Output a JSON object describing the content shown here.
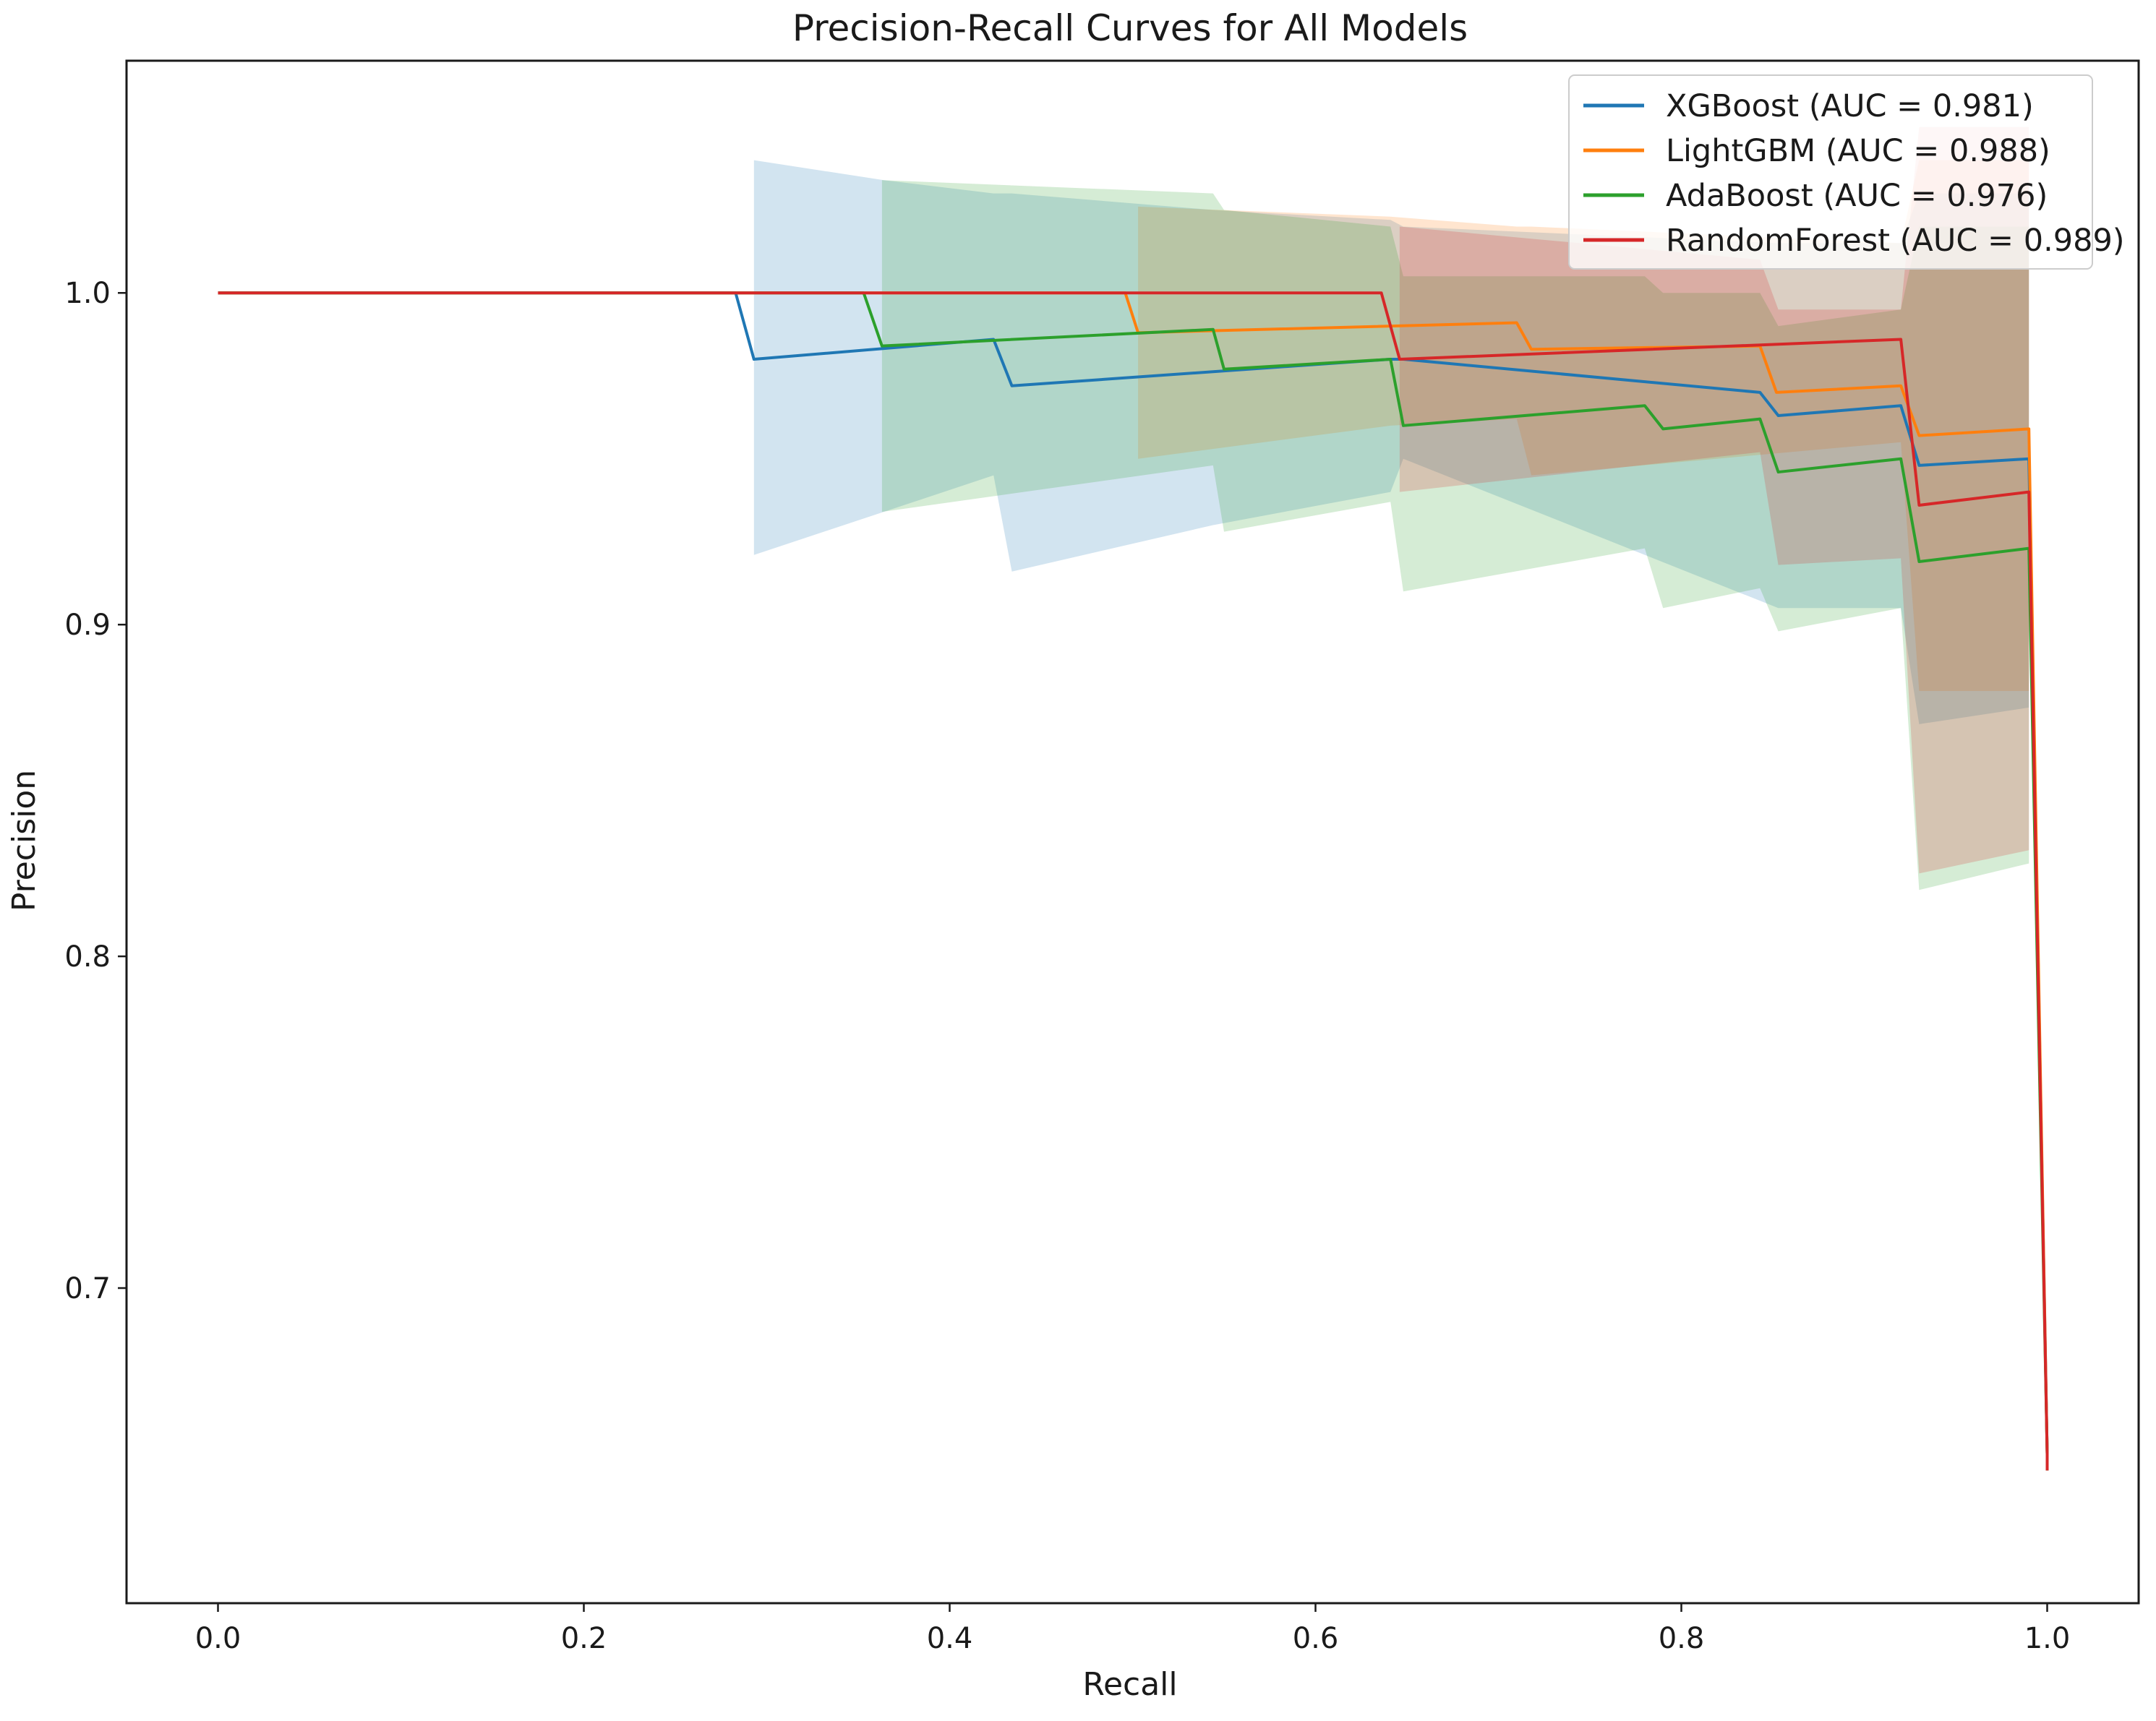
{
  "chart_data": {
    "type": "line",
    "title": "Precision-Recall Curves for All Models",
    "xlabel": "Recall",
    "ylabel": "Precision",
    "xlim": [
      -0.05,
      1.05
    ],
    "ylim": [
      0.605,
      1.07
    ],
    "xticks": [
      0.0,
      0.2,
      0.4,
      0.6,
      0.8,
      1.0
    ],
    "xtick_labels": [
      "0.0",
      "0.2",
      "0.4",
      "0.6",
      "0.8",
      "1.0"
    ],
    "yticks": [
      0.7,
      0.8,
      0.9,
      1.0
    ],
    "ytick_labels": [
      "0.7",
      "0.8",
      "0.9",
      "1.0"
    ],
    "grid": false,
    "legend_position": "top-right",
    "series": [
      {
        "name": "XGBoost",
        "legend_label": "XGBoost (AUC = 0.981)",
        "color": "#1f77b4",
        "x": [
          0.0,
          0.283,
          0.293,
          0.424,
          0.434,
          0.641,
          0.648,
          0.843,
          0.853,
          0.92,
          0.93,
          0.99,
          1.0,
          1.0
        ],
        "y": [
          1.0,
          1.0,
          0.98,
          0.986,
          0.972,
          0.98,
          0.98,
          0.97,
          0.963,
          0.966,
          0.948,
          0.95,
          0.65,
          0.645
        ],
        "band_x": [
          0.293,
          0.364,
          0.424,
          0.434,
          0.544,
          0.641,
          0.648,
          0.853,
          0.92,
          0.93,
          0.99
        ],
        "band_lower": [
          0.921,
          0.934,
          0.945,
          0.916,
          0.93,
          0.94,
          0.95,
          0.905,
          0.905,
          0.87,
          0.875
        ],
        "band_upper": [
          1.04,
          1.034,
          1.03,
          1.03,
          1.025,
          1.022,
          1.02,
          1.015,
          1.015,
          1.03,
          1.03
        ]
      },
      {
        "name": "LightGBM",
        "legend_label": "LightGBM (AUC = 0.988)",
        "color": "#ff7f0e",
        "x": [
          0.0,
          0.496,
          0.503,
          0.71,
          0.718,
          0.843,
          0.852,
          0.92,
          0.93,
          0.99,
          1.0,
          1.0
        ],
        "y": [
          1.0,
          1.0,
          0.988,
          0.991,
          0.983,
          0.984,
          0.97,
          0.972,
          0.957,
          0.959,
          0.65,
          0.645
        ],
        "band_x": [
          0.503,
          0.641,
          0.71,
          0.718,
          0.92,
          0.93,
          0.99
        ],
        "band_lower": [
          0.95,
          0.96,
          0.962,
          0.945,
          0.955,
          0.88,
          0.88
        ],
        "band_upper": [
          1.026,
          1.023,
          1.02,
          1.02,
          1.015,
          1.04,
          1.04
        ]
      },
      {
        "name": "AdaBoost",
        "legend_label": "AdaBoost (AUC = 0.976)",
        "color": "#2ca02c",
        "x": [
          0.0,
          0.353,
          0.363,
          0.544,
          0.55,
          0.641,
          0.648,
          0.78,
          0.79,
          0.843,
          0.853,
          0.92,
          0.93,
          0.99,
          1.0,
          1.0
        ],
        "y": [
          1.0,
          1.0,
          0.984,
          0.989,
          0.977,
          0.98,
          0.96,
          0.966,
          0.959,
          0.962,
          0.946,
          0.95,
          0.919,
          0.923,
          0.65,
          0.645
        ],
        "band_x": [
          0.363,
          0.544,
          0.55,
          0.641,
          0.648,
          0.78,
          0.79,
          0.843,
          0.853,
          0.92,
          0.93,
          0.99
        ],
        "band_lower": [
          0.934,
          0.948,
          0.928,
          0.937,
          0.91,
          0.923,
          0.905,
          0.911,
          0.898,
          0.905,
          0.82,
          0.828
        ],
        "band_upper": [
          1.034,
          1.03,
          1.025,
          1.02,
          1.005,
          1.005,
          1.0,
          1.0,
          0.99,
          0.995,
          1.02,
          1.02
        ]
      },
      {
        "name": "RandomForest",
        "legend_label": "RandomForest (AUC = 0.989)",
        "color": "#d62728",
        "x": [
          0.0,
          0.636,
          0.646,
          0.92,
          0.93,
          0.99,
          1.0,
          1.0
        ],
        "y": [
          1.0,
          1.0,
          0.98,
          0.986,
          0.936,
          0.94,
          0.65,
          0.645
        ],
        "band_x": [
          0.646,
          0.843,
          0.853,
          0.92,
          0.93,
          0.99
        ],
        "band_lower": [
          0.94,
          0.952,
          0.918,
          0.92,
          0.825,
          0.832
        ],
        "band_upper": [
          1.02,
          1.01,
          0.995,
          0.995,
          1.05,
          1.05
        ]
      }
    ]
  }
}
